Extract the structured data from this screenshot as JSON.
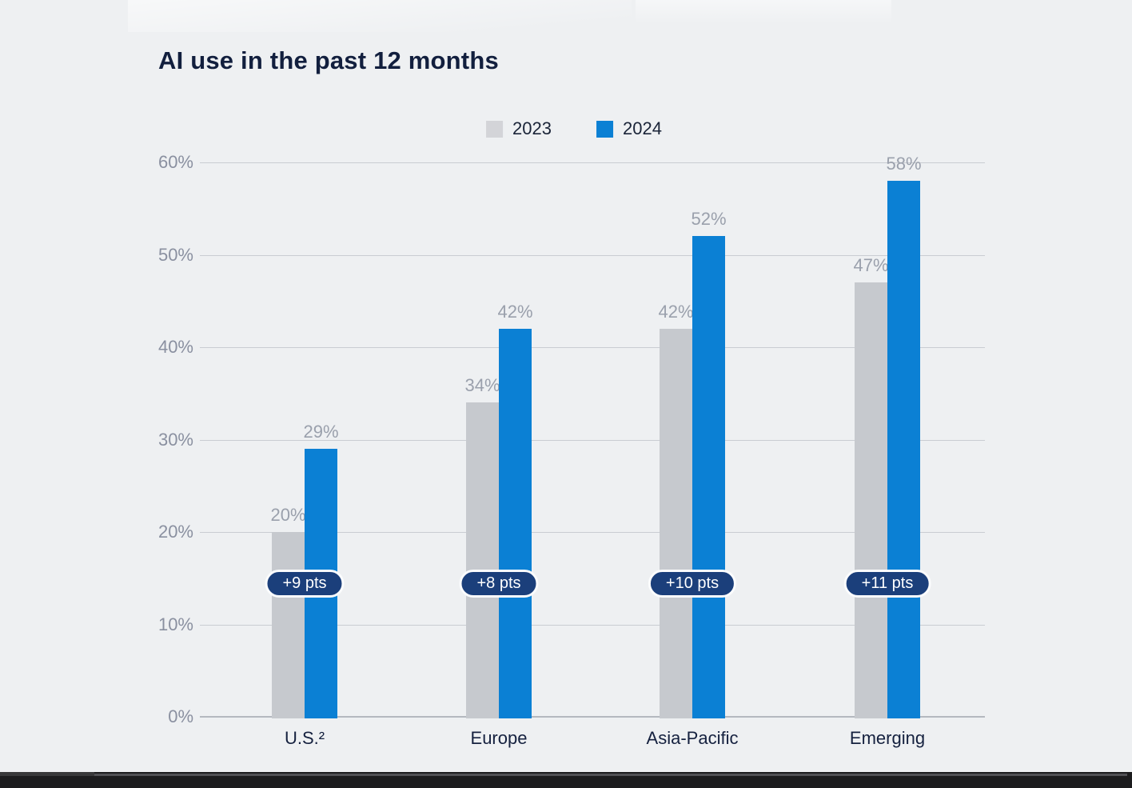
{
  "page": {
    "background": "#eef0f2",
    "bottom_bar_color": "#1c1c1e"
  },
  "chart_data": {
    "type": "bar",
    "title": "AI use in the past 12 months",
    "categories": [
      "U.S.²",
      "Europe",
      "Asia-Pacific",
      "Emerging"
    ],
    "series": [
      {
        "name": "2023",
        "color": "#c6c9ce",
        "legend_color": "#d3d4d8",
        "values": [
          20,
          34,
          42,
          47
        ]
      },
      {
        "name": "2024",
        "color": "#0b80d4",
        "legend_color": "#0b80d4",
        "values": [
          29,
          42,
          52,
          58
        ]
      }
    ],
    "delta_badges": [
      "+9 pts",
      "+8 pts",
      "+10 pts",
      "+11 pts"
    ],
    "value_suffix": "%",
    "y_ticks": [
      "0%",
      "10%",
      "20%",
      "30%",
      "40%",
      "50%",
      "60%"
    ],
    "ylim": [
      0,
      60
    ],
    "grid": true,
    "legend_position": "top-center",
    "colors": {
      "background": "#eef0f2",
      "title": "#121f3e",
      "tick_label": "#8a90a0",
      "value_label": "#9aa0ac",
      "category_label": "#15213f",
      "gridline": "#c9ccd2",
      "baseline": "#b4b8bf",
      "badge_bg": "#1b3f7b",
      "badge_text": "#ffffff",
      "badge_border": "#fbfcfd",
      "bottom_bar": "#1c1c1e"
    }
  }
}
